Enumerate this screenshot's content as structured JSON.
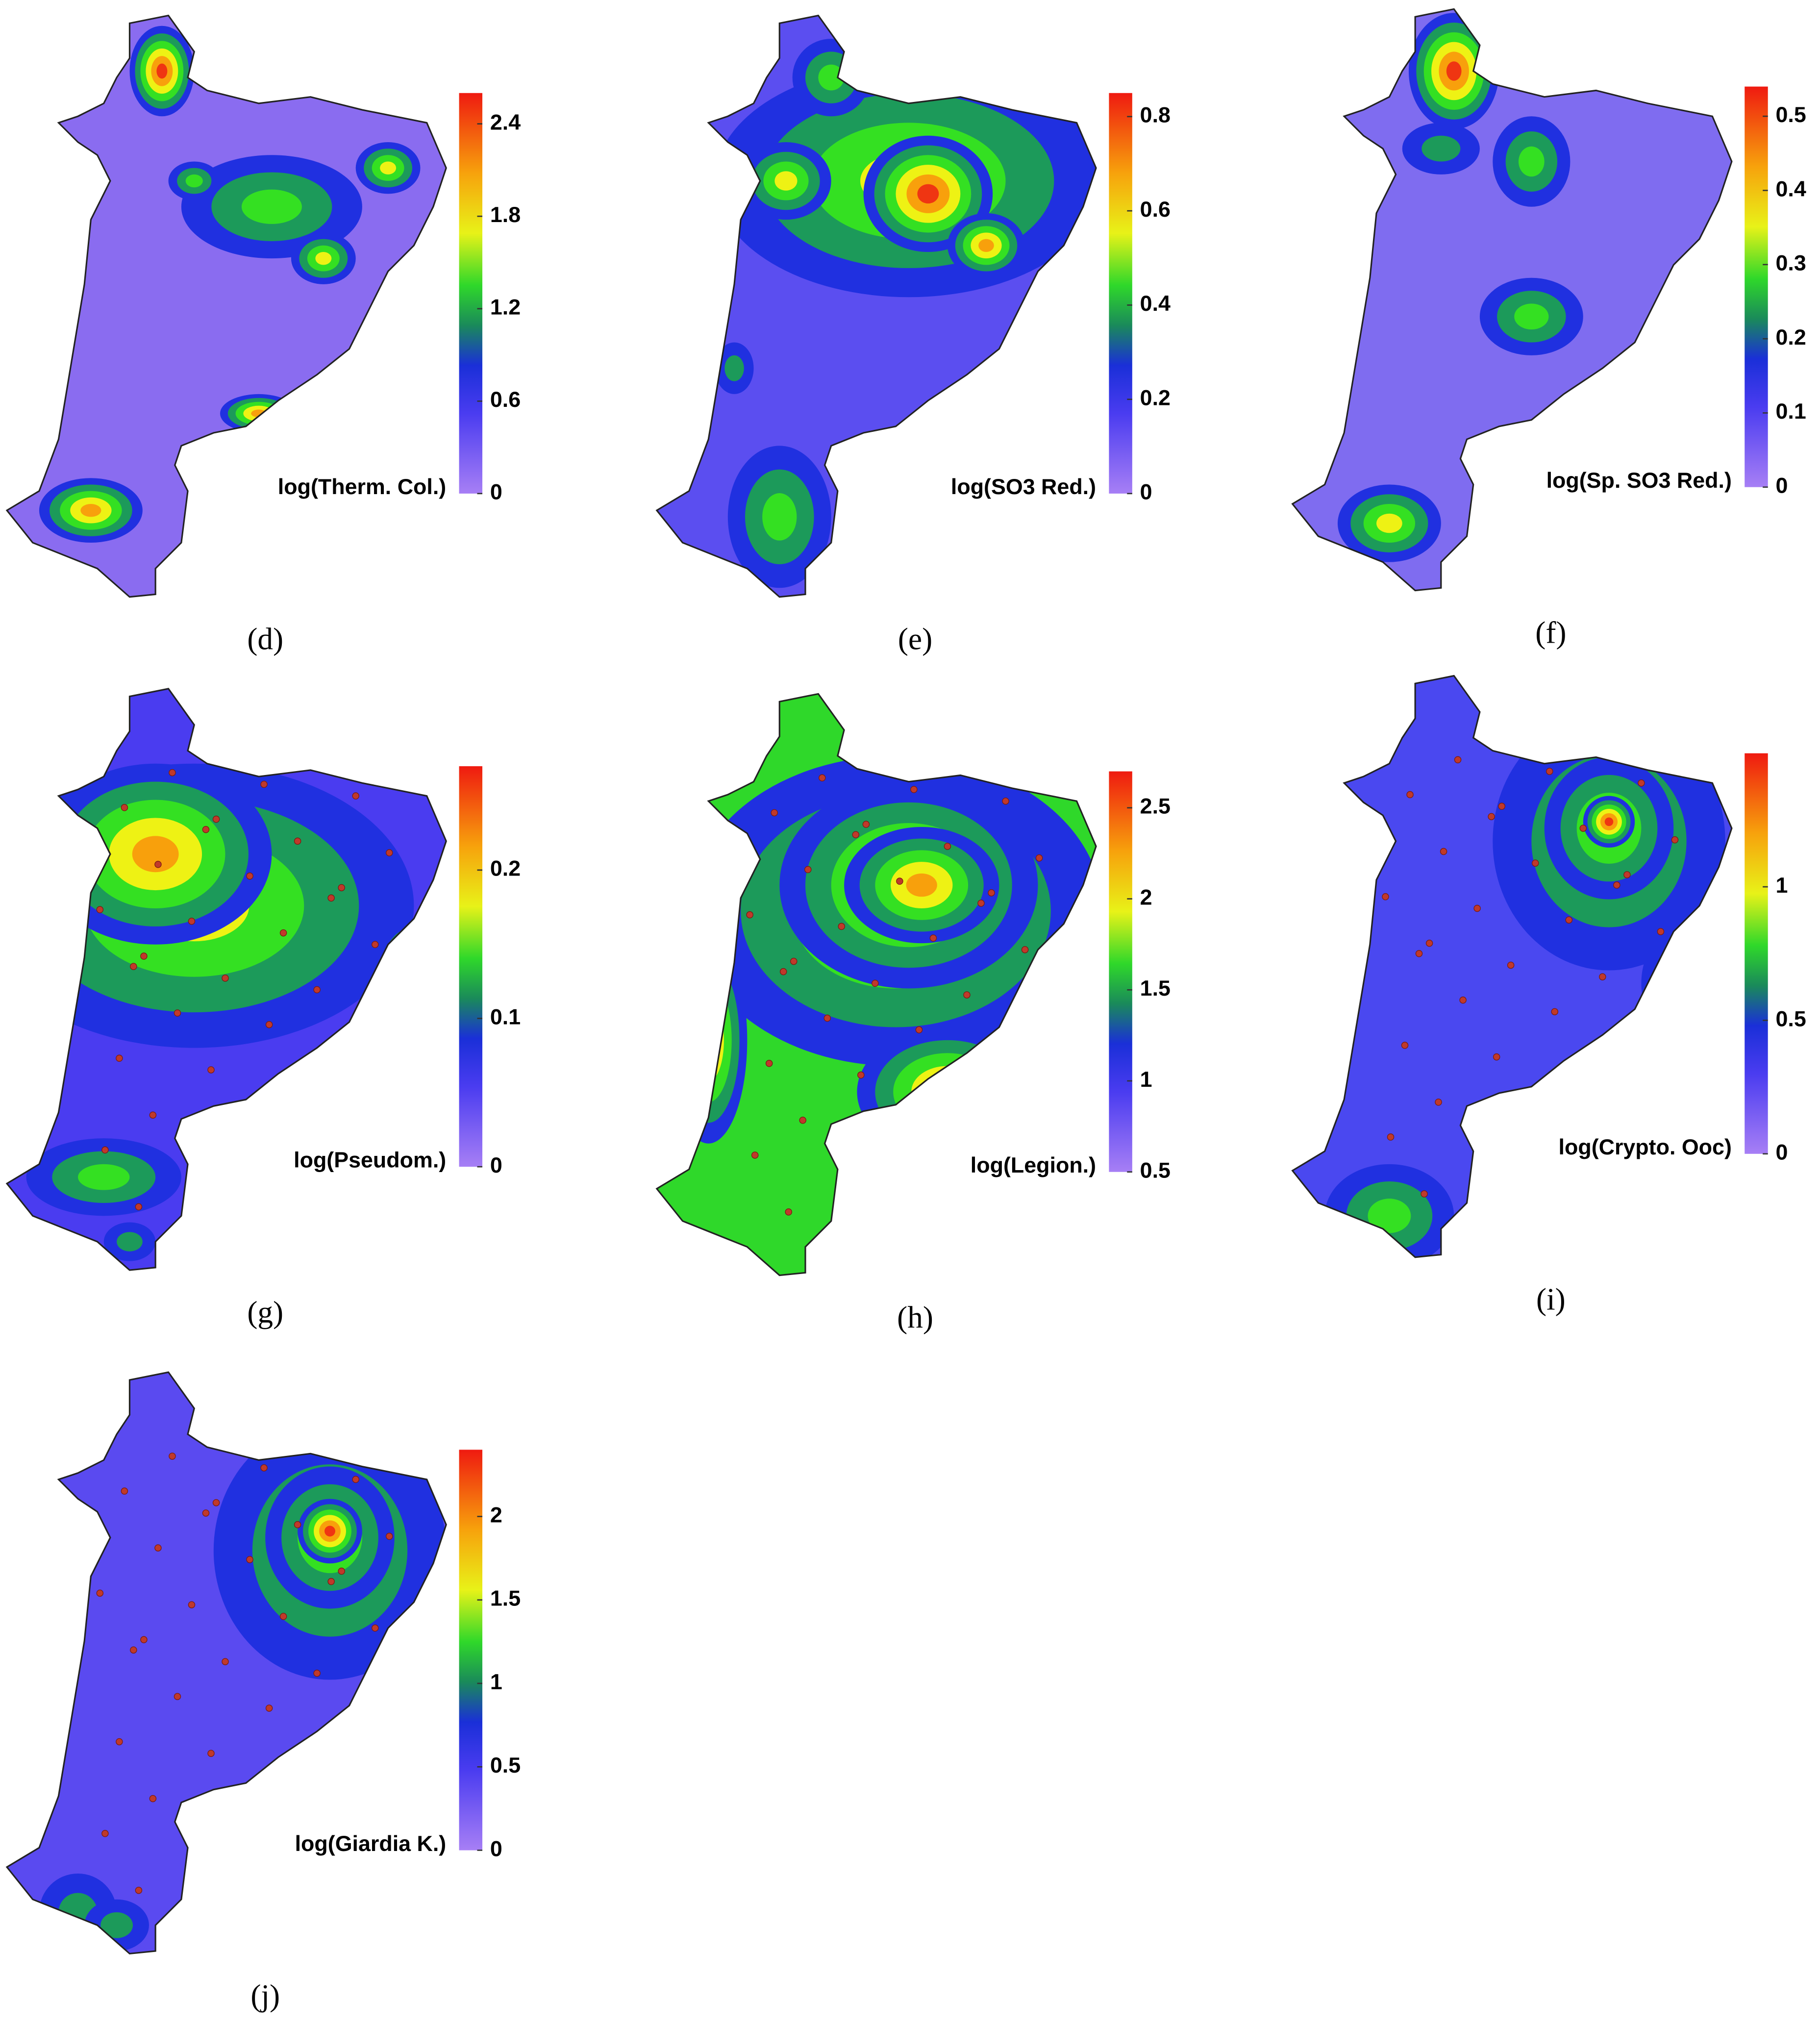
{
  "chart_data": [
    {
      "type": "map",
      "label": "(d)",
      "title": "log(Therm. Col.)",
      "lim": [
        0,
        2.6
      ],
      "ticks": [
        0,
        0.6,
        1.2,
        1.8,
        2.4
      ]
    },
    {
      "type": "map",
      "label": "(e)",
      "title": "log(SO3 Red.)",
      "lim": [
        0,
        0.85
      ],
      "ticks": [
        0,
        0.2,
        0.4,
        0.6,
        0.8
      ]
    },
    {
      "type": "map",
      "label": "(f)",
      "title": "log(Sp. SO3 Red.)",
      "lim": [
        0,
        0.54
      ],
      "ticks": [
        0,
        0.1,
        0.2,
        0.3,
        0.4,
        0.5
      ]
    },
    {
      "type": "map",
      "label": "(g)",
      "title": "log(Pseudom.)",
      "lim": [
        0,
        0.27
      ],
      "ticks": [
        0,
        0.1,
        0.2
      ]
    },
    {
      "type": "map",
      "label": "(h)",
      "title": "log(Legion.)",
      "lim": [
        0.5,
        2.7
      ],
      "ticks": [
        0.5,
        1,
        1.5,
        2,
        2.5
      ]
    },
    {
      "type": "map",
      "label": "(i)",
      "title": "log(Crypto. Ooc)",
      "lim": [
        0,
        1.5
      ],
      "ticks": [
        0,
        0.5,
        1
      ]
    },
    {
      "type": "map",
      "label": "(j)",
      "title": "log(Giardia K.)",
      "lim": [
        0,
        2.4
      ],
      "ticks": [
        0,
        0.5,
        1,
        1.5,
        2
      ]
    }
  ]
}
